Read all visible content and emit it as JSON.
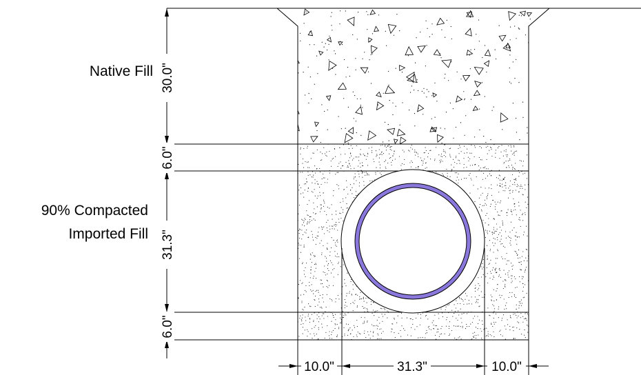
{
  "labels": {
    "native_fill": "Native Fill",
    "compacted_line1": "90% Compacted",
    "compacted_line2": "Imported Fill"
  },
  "dimensions": {
    "vertical": {
      "native_fill_depth": "30.0\"",
      "top_bedding": "6.0\"",
      "pipe_zone": "31.3\"",
      "bottom_bedding": "6.0\""
    },
    "horizontal": {
      "left_clearance": "10.0\"",
      "pipe_width": "31.3\"",
      "right_clearance": "10.0\""
    }
  },
  "colors": {
    "line": "#000000",
    "pipe_wall": "#8a78dd",
    "background": "#ffffff"
  }
}
